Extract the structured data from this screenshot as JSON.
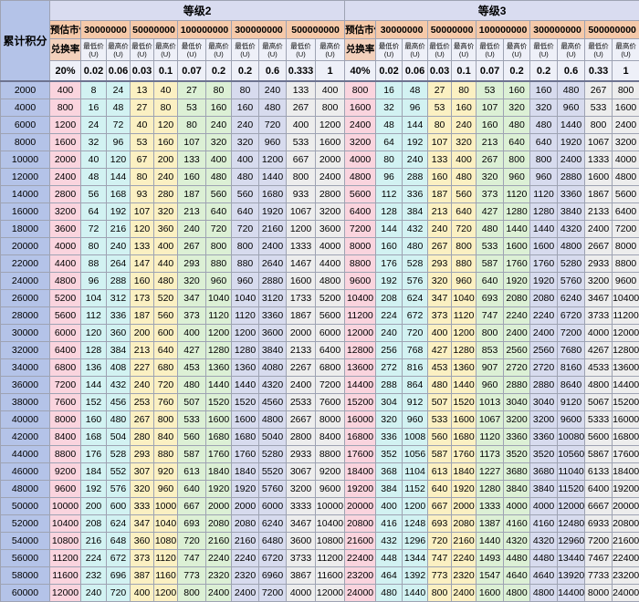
{
  "corner_label": "累计积分",
  "levels": [
    {
      "name": "等级2",
      "market_label": "预估市值",
      "exchange_label": "兑换率",
      "exchange_rate": "20%",
      "markets": [
        {
          "value": "30000000",
          "min_label": "最低价\n(U)",
          "max_label": "最高价\n(U)",
          "min_ratio": "0.02",
          "max_ratio": "0.06"
        },
        {
          "value": "50000000",
          "min_label": "最低价\n(U)",
          "max_label": "最高价\n(U)",
          "min_ratio": "0.03",
          "max_ratio": "0.1"
        },
        {
          "value": "100000000",
          "min_label": "最低价\n(U)",
          "max_label": "最高价\n(U)",
          "min_ratio": "0.07",
          "max_ratio": "0.2"
        },
        {
          "value": "300000000",
          "min_label": "最低价\n(U)",
          "max_label": "最高价\n(U)",
          "min_ratio": "0.2",
          "max_ratio": "0.6"
        },
        {
          "value": "500000000",
          "min_label": "最低价\n(U)",
          "max_label": "最高价\n(U)",
          "min_ratio": "0.333",
          "max_ratio": "1"
        }
      ]
    },
    {
      "name": "等级3",
      "market_label": "预估市值",
      "exchange_label": "兑换率",
      "exchange_rate": "40%",
      "markets": [
        {
          "value": "30000000",
          "min_label": "最低价\n(U)",
          "max_label": "最高价\n(U)",
          "min_ratio": "0.02",
          "max_ratio": "0.06"
        },
        {
          "value": "50000000",
          "min_label": "最低价\n(U)",
          "max_label": "最高价\n(U)",
          "min_ratio": "0.03",
          "max_ratio": "0.1"
        },
        {
          "value": "100000000",
          "min_label": "最低价\n(U)",
          "max_label": "最高价\n(U)",
          "min_ratio": "0.07",
          "max_ratio": "0.2"
        },
        {
          "value": "300000000",
          "min_label": "最低价\n(U)",
          "max_label": "最高价\n(U)",
          "min_ratio": "0.2",
          "max_ratio": "0.6"
        },
        {
          "value": "500000000",
          "min_label": "最低价\n(U)",
          "max_label": "最高价\n(U)",
          "min_ratio": "0.33",
          "max_ratio": "1"
        }
      ]
    }
  ],
  "rows": [
    {
      "score": "2000",
      "l2": [
        "400",
        "8",
        "24",
        "13",
        "40",
        "27",
        "80",
        "80",
        "240",
        "133",
        "400"
      ],
      "l3": [
        "800",
        "16",
        "48",
        "27",
        "80",
        "53",
        "160",
        "160",
        "480",
        "267",
        "800"
      ]
    },
    {
      "score": "4000",
      "l2": [
        "800",
        "16",
        "48",
        "27",
        "80",
        "53",
        "160",
        "160",
        "480",
        "267",
        "800"
      ],
      "l3": [
        "1600",
        "32",
        "96",
        "53",
        "160",
        "107",
        "320",
        "320",
        "960",
        "533",
        "1600"
      ]
    },
    {
      "score": "6000",
      "l2": [
        "1200",
        "24",
        "72",
        "40",
        "120",
        "80",
        "240",
        "240",
        "720",
        "400",
        "1200"
      ],
      "l3": [
        "2400",
        "48",
        "144",
        "80",
        "240",
        "160",
        "480",
        "480",
        "1440",
        "800",
        "2400"
      ]
    },
    {
      "score": "8000",
      "l2": [
        "1600",
        "32",
        "96",
        "53",
        "160",
        "107",
        "320",
        "320",
        "960",
        "533",
        "1600"
      ],
      "l3": [
        "3200",
        "64",
        "192",
        "107",
        "320",
        "213",
        "640",
        "640",
        "1920",
        "1067",
        "3200"
      ]
    },
    {
      "score": "10000",
      "l2": [
        "2000",
        "40",
        "120",
        "67",
        "200",
        "133",
        "400",
        "400",
        "1200",
        "667",
        "2000"
      ],
      "l3": [
        "4000",
        "80",
        "240",
        "133",
        "400",
        "267",
        "800",
        "800",
        "2400",
        "1333",
        "4000"
      ]
    },
    {
      "score": "12000",
      "l2": [
        "2400",
        "48",
        "144",
        "80",
        "240",
        "160",
        "480",
        "480",
        "1440",
        "800",
        "2400"
      ],
      "l3": [
        "4800",
        "96",
        "288",
        "160",
        "480",
        "320",
        "960",
        "960",
        "2880",
        "1600",
        "4800"
      ]
    },
    {
      "score": "14000",
      "l2": [
        "2800",
        "56",
        "168",
        "93",
        "280",
        "187",
        "560",
        "560",
        "1680",
        "933",
        "2800"
      ],
      "l3": [
        "5600",
        "112",
        "336",
        "187",
        "560",
        "373",
        "1120",
        "1120",
        "3360",
        "1867",
        "5600"
      ]
    },
    {
      "score": "16000",
      "l2": [
        "3200",
        "64",
        "192",
        "107",
        "320",
        "213",
        "640",
        "640",
        "1920",
        "1067",
        "3200"
      ],
      "l3": [
        "6400",
        "128",
        "384",
        "213",
        "640",
        "427",
        "1280",
        "1280",
        "3840",
        "2133",
        "6400"
      ]
    },
    {
      "score": "18000",
      "l2": [
        "3600",
        "72",
        "216",
        "120",
        "360",
        "240",
        "720",
        "720",
        "2160",
        "1200",
        "3600"
      ],
      "l3": [
        "7200",
        "144",
        "432",
        "240",
        "720",
        "480",
        "1440",
        "1440",
        "4320",
        "2400",
        "7200"
      ]
    },
    {
      "score": "20000",
      "l2": [
        "4000",
        "80",
        "240",
        "133",
        "400",
        "267",
        "800",
        "800",
        "2400",
        "1333",
        "4000"
      ],
      "l3": [
        "8000",
        "160",
        "480",
        "267",
        "800",
        "533",
        "1600",
        "1600",
        "4800",
        "2667",
        "8000"
      ]
    },
    {
      "score": "22000",
      "l2": [
        "4400",
        "88",
        "264",
        "147",
        "440",
        "293",
        "880",
        "880",
        "2640",
        "1467",
        "4400"
      ],
      "l3": [
        "8800",
        "176",
        "528",
        "293",
        "880",
        "587",
        "1760",
        "1760",
        "5280",
        "2933",
        "8800"
      ]
    },
    {
      "score": "24000",
      "l2": [
        "4800",
        "96",
        "288",
        "160",
        "480",
        "320",
        "960",
        "960",
        "2880",
        "1600",
        "4800"
      ],
      "l3": [
        "9600",
        "192",
        "576",
        "320",
        "960",
        "640",
        "1920",
        "1920",
        "5760",
        "3200",
        "9600"
      ]
    },
    {
      "score": "26000",
      "l2": [
        "5200",
        "104",
        "312",
        "173",
        "520",
        "347",
        "1040",
        "1040",
        "3120",
        "1733",
        "5200"
      ],
      "l3": [
        "10400",
        "208",
        "624",
        "347",
        "1040",
        "693",
        "2080",
        "2080",
        "6240",
        "3467",
        "10400"
      ]
    },
    {
      "score": "28000",
      "l2": [
        "5600",
        "112",
        "336",
        "187",
        "560",
        "373",
        "1120",
        "1120",
        "3360",
        "1867",
        "5600"
      ],
      "l3": [
        "11200",
        "224",
        "672",
        "373",
        "1120",
        "747",
        "2240",
        "2240",
        "6720",
        "3733",
        "11200"
      ]
    },
    {
      "score": "30000",
      "l2": [
        "6000",
        "120",
        "360",
        "200",
        "600",
        "400",
        "1200",
        "1200",
        "3600",
        "2000",
        "6000"
      ],
      "l3": [
        "12000",
        "240",
        "720",
        "400",
        "1200",
        "800",
        "2400",
        "2400",
        "7200",
        "4000",
        "12000"
      ]
    },
    {
      "score": "32000",
      "l2": [
        "6400",
        "128",
        "384",
        "213",
        "640",
        "427",
        "1280",
        "1280",
        "3840",
        "2133",
        "6400"
      ],
      "l3": [
        "12800",
        "256",
        "768",
        "427",
        "1280",
        "853",
        "2560",
        "2560",
        "7680",
        "4267",
        "12800"
      ]
    },
    {
      "score": "34000",
      "l2": [
        "6800",
        "136",
        "408",
        "227",
        "680",
        "453",
        "1360",
        "1360",
        "4080",
        "2267",
        "6800"
      ],
      "l3": [
        "13600",
        "272",
        "816",
        "453",
        "1360",
        "907",
        "2720",
        "2720",
        "8160",
        "4533",
        "13600"
      ]
    },
    {
      "score": "36000",
      "l2": [
        "7200",
        "144",
        "432",
        "240",
        "720",
        "480",
        "1440",
        "1440",
        "4320",
        "2400",
        "7200"
      ],
      "l3": [
        "14400",
        "288",
        "864",
        "480",
        "1440",
        "960",
        "2880",
        "2880",
        "8640",
        "4800",
        "14400"
      ]
    },
    {
      "score": "38000",
      "l2": [
        "7600",
        "152",
        "456",
        "253",
        "760",
        "507",
        "1520",
        "1520",
        "4560",
        "2533",
        "7600"
      ],
      "l3": [
        "15200",
        "304",
        "912",
        "507",
        "1520",
        "1013",
        "3040",
        "3040",
        "9120",
        "5067",
        "15200"
      ]
    },
    {
      "score": "40000",
      "l2": [
        "8000",
        "160",
        "480",
        "267",
        "800",
        "533",
        "1600",
        "1600",
        "4800",
        "2667",
        "8000"
      ],
      "l3": [
        "16000",
        "320",
        "960",
        "533",
        "1600",
        "1067",
        "3200",
        "3200",
        "9600",
        "5333",
        "16000"
      ]
    },
    {
      "score": "42000",
      "l2": [
        "8400",
        "168",
        "504",
        "280",
        "840",
        "560",
        "1680",
        "1680",
        "5040",
        "2800",
        "8400"
      ],
      "l3": [
        "16800",
        "336",
        "1008",
        "560",
        "1680",
        "1120",
        "3360",
        "3360",
        "10080",
        "5600",
        "16800"
      ]
    },
    {
      "score": "44000",
      "l2": [
        "8800",
        "176",
        "528",
        "293",
        "880",
        "587",
        "1760",
        "1760",
        "5280",
        "2933",
        "8800"
      ],
      "l3": [
        "17600",
        "352",
        "1056",
        "587",
        "1760",
        "1173",
        "3520",
        "3520",
        "10560",
        "5867",
        "17600"
      ]
    },
    {
      "score": "46000",
      "l2": [
        "9200",
        "184",
        "552",
        "307",
        "920",
        "613",
        "1840",
        "1840",
        "5520",
        "3067",
        "9200"
      ],
      "l3": [
        "18400",
        "368",
        "1104",
        "613",
        "1840",
        "1227",
        "3680",
        "3680",
        "11040",
        "6133",
        "18400"
      ]
    },
    {
      "score": "48000",
      "l2": [
        "9600",
        "192",
        "576",
        "320",
        "960",
        "640",
        "1920",
        "1920",
        "5760",
        "3200",
        "9600"
      ],
      "l3": [
        "19200",
        "384",
        "1152",
        "640",
        "1920",
        "1280",
        "3840",
        "3840",
        "11520",
        "6400",
        "19200"
      ]
    },
    {
      "score": "50000",
      "l2": [
        "10000",
        "200",
        "600",
        "333",
        "1000",
        "667",
        "2000",
        "2000",
        "6000",
        "3333",
        "10000"
      ],
      "l3": [
        "20000",
        "400",
        "1200",
        "667",
        "2000",
        "1333",
        "4000",
        "4000",
        "12000",
        "6667",
        "20000"
      ]
    },
    {
      "score": "52000",
      "l2": [
        "10400",
        "208",
        "624",
        "347",
        "1040",
        "693",
        "2080",
        "2080",
        "6240",
        "3467",
        "10400"
      ],
      "l3": [
        "20800",
        "416",
        "1248",
        "693",
        "2080",
        "1387",
        "4160",
        "4160",
        "12480",
        "6933",
        "20800"
      ]
    },
    {
      "score": "54000",
      "l2": [
        "10800",
        "216",
        "648",
        "360",
        "1080",
        "720",
        "2160",
        "2160",
        "6480",
        "3600",
        "10800"
      ],
      "l3": [
        "21600",
        "432",
        "1296",
        "720",
        "2160",
        "1440",
        "4320",
        "4320",
        "12960",
        "7200",
        "21600"
      ]
    },
    {
      "score": "56000",
      "l2": [
        "11200",
        "224",
        "672",
        "373",
        "1120",
        "747",
        "2240",
        "2240",
        "6720",
        "3733",
        "11200"
      ],
      "l3": [
        "22400",
        "448",
        "1344",
        "747",
        "2240",
        "1493",
        "4480",
        "4480",
        "13440",
        "7467",
        "22400"
      ]
    },
    {
      "score": "58000",
      "l2": [
        "11600",
        "232",
        "696",
        "387",
        "1160",
        "773",
        "2320",
        "2320",
        "6960",
        "3867",
        "11600"
      ],
      "l3": [
        "23200",
        "464",
        "1392",
        "773",
        "2320",
        "1547",
        "4640",
        "4640",
        "13920",
        "7733",
        "23200"
      ]
    },
    {
      "score": "60000",
      "l2": [
        "12000",
        "240",
        "720",
        "400",
        "1200",
        "800",
        "2400",
        "2400",
        "7200",
        "4000",
        "12000"
      ],
      "l3": [
        "24000",
        "480",
        "1440",
        "800",
        "2400",
        "1600",
        "4800",
        "4800",
        "14400",
        "8000",
        "24000"
      ]
    }
  ]
}
